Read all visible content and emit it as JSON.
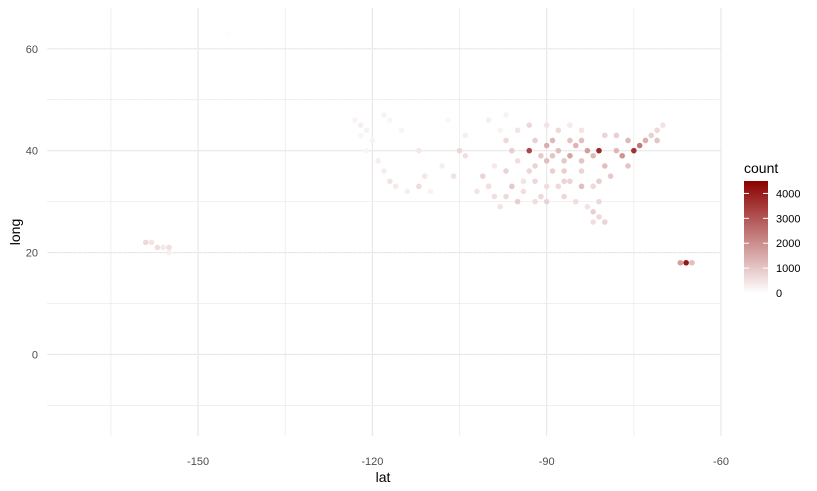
{
  "chart_data": {
    "type": "scatter",
    "title": "",
    "xlabel": "lat",
    "ylabel": "long",
    "xlim": [
      -176,
      -60
    ],
    "ylim": [
      -16,
      68
    ],
    "x_ticks": [
      -150,
      -120,
      -90,
      -60
    ],
    "x_tick_labels": [
      "-150",
      "-120",
      "-90",
      "-60"
    ],
    "y_ticks": [
      0,
      20,
      40,
      60
    ],
    "y_tick_labels": [
      "0",
      "20",
      "40",
      "60"
    ],
    "grid": true,
    "legend": {
      "title": "count",
      "position": "right",
      "range": [
        0,
        4500
      ],
      "breaks": [
        0,
        1000,
        2000,
        3000,
        4000
      ],
      "break_labels": [
        "0",
        "1000",
        "2000",
        "3000",
        "4000"
      ],
      "low_color": "#ffffff",
      "high_color": "#8b0000"
    },
    "points": [
      [
        -145,
        63,
        50
      ],
      [
        -159,
        22,
        700
      ],
      [
        -158,
        22,
        500
      ],
      [
        -157,
        21,
        650
      ],
      [
        -156,
        21,
        400
      ],
      [
        -155,
        21,
        600
      ],
      [
        -155,
        20,
        300
      ],
      [
        -67,
        18,
        1800
      ],
      [
        -66,
        18,
        4300
      ],
      [
        -65,
        18,
        1200
      ],
      [
        -123,
        46,
        200
      ],
      [
        -122,
        45,
        300
      ],
      [
        -121,
        44,
        250
      ],
      [
        -122,
        43,
        180
      ],
      [
        -120,
        42,
        220
      ],
      [
        -121,
        40,
        200
      ],
      [
        -119,
        38,
        300
      ],
      [
        -118,
        36,
        350
      ],
      [
        -117,
        34,
        500
      ],
      [
        -116,
        33,
        400
      ],
      [
        -114,
        32,
        300
      ],
      [
        -112,
        33,
        650
      ],
      [
        -111,
        35,
        450
      ],
      [
        -110,
        32,
        250
      ],
      [
        -106,
        35,
        550
      ],
      [
        -108,
        37,
        300
      ],
      [
        -112,
        40,
        450
      ],
      [
        -105,
        40,
        750
      ],
      [
        -104,
        39,
        600
      ],
      [
        -104,
        43,
        300
      ],
      [
        -100,
        46,
        300
      ],
      [
        -98,
        44,
        250
      ],
      [
        -97,
        42,
        700
      ],
      [
        -96,
        40,
        900
      ],
      [
        -95,
        38,
        600
      ],
      [
        -97,
        36,
        800
      ],
      [
        -96,
        33,
        1000
      ],
      [
        -97,
        31,
        700
      ],
      [
        -95,
        30,
        900
      ],
      [
        -98,
        29,
        500
      ],
      [
        -94,
        32,
        600
      ],
      [
        -93,
        36,
        750
      ],
      [
        -92,
        37,
        800
      ],
      [
        -91,
        39,
        1000
      ],
      [
        -90,
        41,
        1500
      ],
      [
        -89,
        42,
        1300
      ],
      [
        -88,
        40,
        1200
      ],
      [
        -87,
        38,
        1000
      ],
      [
        -86,
        39,
        1700
      ],
      [
        -85,
        41,
        1400
      ],
      [
        -84,
        42,
        1200
      ],
      [
        -83,
        40,
        1800
      ],
      [
        -82,
        39,
        1300
      ],
      [
        -81,
        40,
        4000
      ],
      [
        -80,
        37,
        1200
      ],
      [
        -79,
        35,
        1000
      ],
      [
        -81,
        34,
        900
      ],
      [
        -82,
        33,
        700
      ],
      [
        -84,
        33,
        1200
      ],
      [
        -86,
        34,
        800
      ],
      [
        -88,
        33,
        700
      ],
      [
        -90,
        33,
        600
      ],
      [
        -91,
        31,
        700
      ],
      [
        -90,
        30,
        800
      ],
      [
        -92,
        30,
        600
      ],
      [
        -87,
        31,
        700
      ],
      [
        -85,
        30,
        600
      ],
      [
        -83,
        29,
        500
      ],
      [
        -82,
        28,
        900
      ],
      [
        -81,
        27,
        700
      ],
      [
        -80,
        26,
        800
      ],
      [
        -82,
        26,
        600
      ],
      [
        -81,
        30,
        700
      ],
      [
        -93,
        40,
        3400
      ],
      [
        -92,
        42,
        900
      ],
      [
        -95,
        44,
        500
      ],
      [
        -93,
        45,
        700
      ],
      [
        -90,
        45,
        500
      ],
      [
        -86,
        45,
        400
      ],
      [
        -84,
        44,
        500
      ],
      [
        -78,
        43,
        900
      ],
      [
        -76,
        42,
        1300
      ],
      [
        -75,
        40,
        3800
      ],
      [
        -74,
        41,
        2500
      ],
      [
        -73,
        42,
        1500
      ],
      [
        -72,
        43,
        900
      ],
      [
        -71,
        44,
        700
      ],
      [
        -70,
        45,
        500
      ],
      [
        -71,
        42,
        1100
      ],
      [
        -77,
        39,
        2000
      ],
      [
        -76,
        37,
        1100
      ],
      [
        -78,
        40,
        1300
      ],
      [
        -80,
        43,
        800
      ],
      [
        -89,
        36,
        900
      ],
      [
        -87,
        36,
        900
      ],
      [
        -84,
        36,
        800
      ],
      [
        -100,
        33,
        600
      ],
      [
        -102,
        32,
        500
      ],
      [
        -101,
        35,
        800
      ],
      [
        -99,
        37,
        400
      ],
      [
        -94,
        34,
        500
      ],
      [
        -90,
        38,
        1200
      ],
      [
        -88,
        44,
        700
      ],
      [
        -97,
        47,
        250
      ],
      [
        -107,
        46,
        150
      ],
      [
        -115,
        44,
        200
      ],
      [
        -118,
        47,
        250
      ],
      [
        -117,
        46,
        180
      ],
      [
        -89,
        39,
        1100
      ],
      [
        -86,
        42,
        1100
      ],
      [
        -84,
        38,
        1100
      ],
      [
        -92,
        34,
        700
      ],
      [
        -99,
        31,
        600
      ],
      [
        -87,
        34,
        800
      ]
    ]
  }
}
